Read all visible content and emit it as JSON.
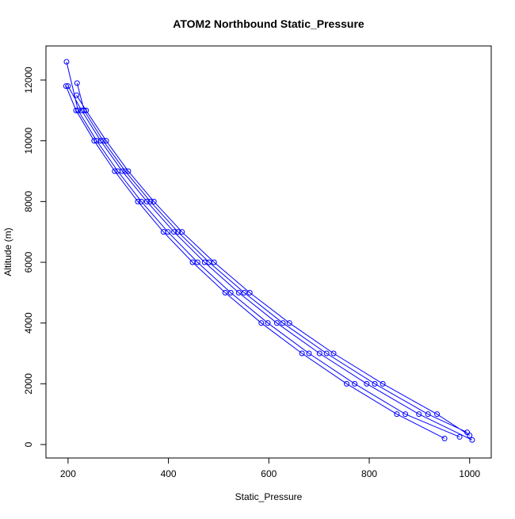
{
  "chart_data": {
    "type": "line",
    "title": "ATOM2 Northbound Static_Pressure",
    "x_label": "Static_Pressure",
    "y_label": "Altitude (m)",
    "x": [
      950,
      855,
      755,
      666,
      585,
      513,
      448,
      390,
      339,
      293,
      252,
      216,
      196,
      null,
      1005,
      899,
      795,
      701,
      616,
      540,
      472,
      411,
      357,
      308,
      265,
      227,
      200,
      null,
      1000,
      935,
      827,
      729,
      641,
      562,
      491,
      427,
      371,
      320,
      276,
      236,
      217,
      null,
      980,
      872,
      771,
      680,
      598,
      524,
      458,
      399,
      346,
      299,
      257,
      220,
      197,
      null,
      995,
      917,
      811,
      715,
      628,
      551,
      481,
      419,
      364,
      314,
      270,
      232,
      218
    ],
    "series": [
      {
        "color": "#0000ff",
        "values": [
          200,
          1000,
          2000,
          3000,
          4000,
          5000,
          6000,
          7000,
          8000,
          9000,
          10000,
          11000,
          11800,
          null,
          150,
          1000,
          2000,
          3000,
          4000,
          5000,
          6000,
          7000,
          8000,
          9000,
          10000,
          11000,
          11800,
          null,
          300,
          1000,
          2000,
          3000,
          4000,
          5000,
          6000,
          7000,
          8000,
          9000,
          10000,
          11000,
          11500,
          null,
          250,
          1000,
          2000,
          3000,
          4000,
          5000,
          6000,
          7000,
          8000,
          9000,
          10000,
          11000,
          12600,
          null,
          400,
          1000,
          2000,
          3000,
          4000,
          5000,
          6000,
          7000,
          8000,
          9000,
          10000,
          11000,
          11900
        ]
      }
    ],
    "xlim": [
      156,
      1043
    ],
    "ylim": [
      -443,
      13122
    ],
    "xticks": [
      200,
      400,
      600,
      800,
      1000
    ],
    "yticks": [
      0,
      2000,
      4000,
      6000,
      8000,
      10000,
      12000
    ]
  }
}
